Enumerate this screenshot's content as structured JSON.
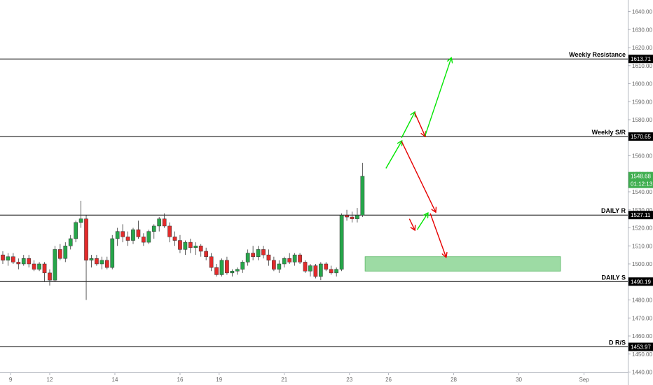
{
  "chart_data": {
    "type": "candlestick",
    "y_range": [
      1440,
      1648
    ],
    "y_ticks": [
      "1440.00",
      "1450.00",
      "1460.00",
      "1470.00",
      "1480.00",
      "1490.00",
      "1500.00",
      "1510.00",
      "1520.00",
      "1530.00",
      "1540.00",
      "1550.00",
      "1560.00",
      "1570.00",
      "1580.00",
      "1590.00",
      "1600.00",
      "1610.00",
      "1620.00",
      "1630.00",
      "1640.00"
    ],
    "x_ticks": [
      {
        "label": "9",
        "t": 1.5
      },
      {
        "label": "12",
        "t": 9
      },
      {
        "label": "14",
        "t": 21.5
      },
      {
        "label": "16",
        "t": 34
      },
      {
        "label": "19",
        "t": 41.5
      },
      {
        "label": "21",
        "t": 54
      },
      {
        "label": "23",
        "t": 66.5
      },
      {
        "label": "26",
        "t": 74
      },
      {
        "label": "28",
        "t": 86.5
      },
      {
        "label": "30",
        "t": 99
      },
      {
        "label": "Sep",
        "t": 111.5
      }
    ],
    "levels": [
      {
        "name": "Weekly Resistance",
        "value": 1613.71,
        "tag": "1613.71"
      },
      {
        "name": "Weekly S/R",
        "value": 1570.65,
        "tag": "1570.65"
      },
      {
        "name": "DAILY R",
        "value": 1527.11,
        "tag": "1527.11"
      },
      {
        "name": "DAILY S",
        "value": 1490.19,
        "tag": "1490.19"
      },
      {
        "name": "D R/S",
        "value": 1453.97,
        "tag": "1453.97"
      }
    ],
    "last_price": {
      "value": 1548.68,
      "tag": "1548.68",
      "countdown": "01:12:13"
    },
    "demand_zone": {
      "t_start": 69.5,
      "t_end": 107,
      "low": 1496,
      "high": 1504
    },
    "candles": [
      [
        1505,
        1507,
        1500,
        1502
      ],
      [
        1502,
        1506,
        1499,
        1504
      ],
      [
        1504,
        1506,
        1500,
        1501
      ],
      [
        1501,
        1503,
        1497,
        1500
      ],
      [
        1500,
        1505,
        1499,
        1503
      ],
      [
        1503,
        1505,
        1498,
        1500
      ],
      [
        1500,
        1502,
        1496,
        1497
      ],
      [
        1497,
        1501,
        1496,
        1500
      ],
      [
        1500,
        1501,
        1490,
        1495
      ],
      [
        1495,
        1497,
        1488,
        1491
      ],
      [
        1491,
        1510,
        1490,
        1508
      ],
      [
        1508,
        1511,
        1502,
        1503
      ],
      [
        1503,
        1512,
        1501,
        1510
      ],
      [
        1510,
        1516,
        1508,
        1514
      ],
      [
        1514,
        1524,
        1512,
        1523
      ],
      [
        1523,
        1535,
        1520,
        1525
      ],
      [
        1525,
        1527,
        1480,
        1502
      ],
      [
        1502,
        1505,
        1498,
        1503
      ],
      [
        1503,
        1505,
        1499,
        1500
      ],
      [
        1500,
        1504,
        1497,
        1502
      ],
      [
        1502,
        1504,
        1497,
        1498
      ],
      [
        1498,
        1516,
        1497,
        1514
      ],
      [
        1514,
        1520,
        1510,
        1518
      ],
      [
        1518,
        1522,
        1512,
        1515
      ],
      [
        1515,
        1518,
        1510,
        1513
      ],
      [
        1513,
        1520,
        1511,
        1519
      ],
      [
        1519,
        1524,
        1514,
        1515
      ],
      [
        1515,
        1517,
        1510,
        1512
      ],
      [
        1512,
        1519,
        1511,
        1518
      ],
      [
        1518,
        1522,
        1514,
        1521
      ],
      [
        1521,
        1526,
        1518,
        1525
      ],
      [
        1525,
        1528,
        1520,
        1521
      ],
      [
        1521,
        1523,
        1512,
        1515
      ],
      [
        1515,
        1518,
        1510,
        1513
      ],
      [
        1513,
        1516,
        1506,
        1508
      ],
      [
        1508,
        1513,
        1505,
        1512
      ],
      [
        1512,
        1514,
        1506,
        1509
      ],
      [
        1509,
        1512,
        1505,
        1510
      ],
      [
        1510,
        1511,
        1504,
        1507
      ],
      [
        1507,
        1509,
        1502,
        1504
      ],
      [
        1504,
        1506,
        1496,
        1498
      ],
      [
        1498,
        1500,
        1493,
        1494
      ],
      [
        1494,
        1503,
        1493,
        1502
      ],
      [
        1502,
        1504,
        1494,
        1495
      ],
      [
        1495,
        1497,
        1493,
        1496
      ],
      [
        1496,
        1498,
        1494,
        1497
      ],
      [
        1497,
        1502,
        1495,
        1501
      ],
      [
        1501,
        1508,
        1499,
        1506
      ],
      [
        1506,
        1510,
        1502,
        1504
      ],
      [
        1504,
        1510,
        1502,
        1508
      ],
      [
        1508,
        1510,
        1503,
        1505
      ],
      [
        1505,
        1508,
        1499,
        1502
      ],
      [
        1502,
        1504,
        1496,
        1497
      ],
      [
        1497,
        1502,
        1495,
        1500
      ],
      [
        1500,
        1504,
        1498,
        1503
      ],
      [
        1503,
        1506,
        1500,
        1501
      ],
      [
        1501,
        1506,
        1499,
        1505
      ],
      [
        1505,
        1506,
        1500,
        1501
      ],
      [
        1501,
        1502,
        1495,
        1496
      ],
      [
        1496,
        1500,
        1493,
        1499
      ],
      [
        1499,
        1500,
        1492,
        1493
      ],
      [
        1493,
        1501,
        1491,
        1500
      ],
      [
        1500,
        1501,
        1496,
        1497
      ],
      [
        1497,
        1499,
        1494,
        1495
      ],
      [
        1495,
        1498,
        1493,
        1497
      ],
      [
        1497,
        1528,
        1496,
        1527
      ],
      [
        1527,
        1530,
        1524,
        1526
      ],
      [
        1526,
        1529,
        1523,
        1525
      ],
      [
        1525,
        1531,
        1523,
        1527
      ],
      [
        1527,
        1556,
        1526,
        1548.68
      ]
    ],
    "arrows": [
      {
        "color": "#00e600",
        "from": [
          73.5,
          1553
        ],
        "to": [
          76.5,
          1568
        ]
      },
      {
        "color": "#00e600",
        "from": [
          76.5,
          1570
        ],
        "to": [
          79,
          1584
        ]
      },
      {
        "color": "#e60000",
        "from": [
          79,
          1584
        ],
        "to": [
          81,
          1571
        ]
      },
      {
        "color": "#00e600",
        "from": [
          81,
          1571
        ],
        "to": [
          86,
          1614
        ]
      },
      {
        "color": "#e60000",
        "from": [
          76.5,
          1568
        ],
        "to": [
          83,
          1529
        ]
      },
      {
        "color": "#e60000",
        "from": [
          78,
          1525
        ],
        "to": [
          79,
          1519
        ]
      },
      {
        "color": "#00e600",
        "from": [
          79.5,
          1519
        ],
        "to": [
          81.5,
          1528
        ]
      },
      {
        "color": "#e60000",
        "from": [
          82,
          1528
        ],
        "to": [
          85,
          1504
        ]
      }
    ],
    "colors": {
      "up": "#26a64a",
      "down": "#e32b2b",
      "level": "#000000",
      "zone": "#7ccf85",
      "last_price_tag": "#3fae4f",
      "axis_text": "#666666"
    }
  }
}
